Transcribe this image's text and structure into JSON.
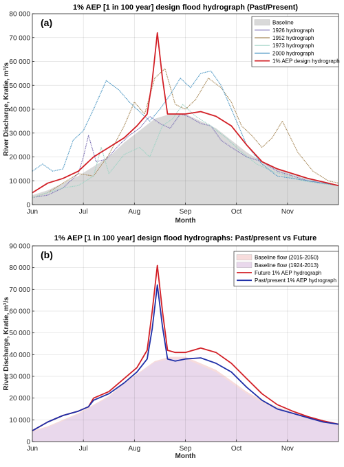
{
  "chart_data": [
    {
      "type": "area",
      "panel_label": "(a)",
      "title": "1% AEP [1 in 100 year] design flood hydrograph (Past/Present)",
      "xlabel": "Month",
      "ylabel": "River Discharge, Kratie, m³/s",
      "ylim": [
        0,
        80000
      ],
      "y_ticks": [
        0,
        10000,
        20000,
        30000,
        40000,
        50000,
        60000,
        70000,
        80000
      ],
      "y_tick_labels": [
        "0",
        "10 000",
        "20 000",
        "30 000",
        "40 000",
        "50 000",
        "60 000",
        "70 000",
        "80 000"
      ],
      "x_ticks": [
        "Jun",
        "Jul",
        "Aug",
        "Sep",
        "Oct",
        "Nov"
      ],
      "xlim_months": [
        0,
        6
      ],
      "grid": true,
      "legend_position": "top-right",
      "series": [
        {
          "name": "Baseline",
          "style": "area",
          "color": "#d9d9d9",
          "x": [
            0,
            0.3,
            0.6,
            0.9,
            1.2,
            1.5,
            1.8,
            2.1,
            2.4,
            2.7,
            3.0,
            3.3,
            3.6,
            3.9,
            4.2,
            4.5,
            4.8,
            5.1,
            5.4,
            5.7,
            6.0
          ],
          "y": [
            4000,
            6000,
            9000,
            12000,
            16000,
            20000,
            26000,
            31000,
            36000,
            38000,
            38000,
            35000,
            32000,
            27000,
            22000,
            18000,
            15000,
            13000,
            11000,
            9000,
            8000
          ]
        },
        {
          "name": "1926 hydrograph",
          "style": "line",
          "color": "#7e72b5",
          "x": [
            0,
            0.3,
            0.6,
            0.9,
            1.0,
            1.1,
            1.25,
            1.45,
            1.7,
            1.9,
            2.1,
            2.3,
            2.5,
            2.7,
            2.9,
            3.05,
            3.3,
            3.5,
            3.7,
            3.9,
            4.2,
            4.5,
            4.8,
            5.1,
            5.4,
            5.7,
            6.0
          ],
          "y": [
            3000,
            4000,
            7000,
            13000,
            20000,
            29000,
            18000,
            19000,
            25000,
            29000,
            32000,
            37000,
            34000,
            32000,
            38000,
            37000,
            34000,
            33000,
            27000,
            24000,
            20000,
            18000,
            14000,
            12000,
            10000,
            9000,
            8000
          ]
        },
        {
          "name": "1952 hydrograph",
          "style": "line",
          "color": "#a88a5a",
          "x": [
            0,
            0.3,
            0.6,
            0.9,
            1.2,
            1.5,
            1.8,
            2.0,
            2.2,
            2.4,
            2.6,
            2.8,
            3.0,
            3.2,
            3.45,
            3.7,
            3.9,
            4.1,
            4.3,
            4.5,
            4.7,
            4.9,
            5.2,
            5.5,
            5.8,
            6.0
          ],
          "y": [
            3000,
            5000,
            9000,
            13000,
            12000,
            21000,
            33000,
            43000,
            38000,
            53000,
            57000,
            42000,
            40000,
            44000,
            53000,
            49000,
            43000,
            33000,
            29000,
            24000,
            28000,
            35000,
            22000,
            14000,
            10000,
            9000
          ]
        },
        {
          "name": "1973 hydrograph",
          "style": "line",
          "color": "#9fd3c5",
          "x": [
            0,
            0.3,
            0.6,
            0.9,
            1.2,
            1.35,
            1.5,
            1.8,
            2.1,
            2.3,
            2.55,
            2.75,
            2.95,
            3.2,
            3.5,
            3.8,
            4.1,
            4.4,
            4.7,
            5.0,
            5.3,
            5.6,
            6.0
          ],
          "y": [
            3000,
            5000,
            7000,
            8000,
            12000,
            24000,
            13000,
            21000,
            24000,
            20000,
            33000,
            36000,
            42000,
            37000,
            33000,
            28000,
            22000,
            17000,
            14000,
            12000,
            10000,
            9000,
            8000
          ]
        },
        {
          "name": "2000 hydrograph",
          "style": "line",
          "color": "#4e98c4",
          "x": [
            0,
            0.2,
            0.4,
            0.6,
            0.8,
            1.0,
            1.2,
            1.45,
            1.7,
            1.9,
            2.1,
            2.3,
            2.5,
            2.7,
            2.9,
            3.1,
            3.3,
            3.5,
            3.7,
            3.9,
            4.2,
            4.5,
            4.8,
            5.1,
            5.4,
            5.7,
            6.0
          ],
          "y": [
            14000,
            17000,
            14000,
            15000,
            27000,
            31000,
            40000,
            52000,
            48000,
            43000,
            39000,
            35000,
            40000,
            46000,
            53000,
            49000,
            55000,
            56000,
            50000,
            40000,
            25000,
            17000,
            12000,
            11000,
            10000,
            9000,
            8000
          ]
        },
        {
          "name": "1% AEP design hydrograph",
          "style": "line",
          "color": "#d21f26",
          "x": [
            0,
            0.3,
            0.6,
            0.9,
            1.2,
            1.5,
            1.8,
            2.05,
            2.25,
            2.35,
            2.45,
            2.55,
            2.65,
            2.75,
            3.0,
            3.3,
            3.6,
            3.9,
            4.2,
            4.5,
            4.8,
            5.1,
            5.4,
            5.7,
            6.0
          ],
          "y": [
            5000,
            9000,
            11000,
            14000,
            20000,
            24000,
            28000,
            33000,
            38000,
            52000,
            72000,
            53000,
            38000,
            38000,
            38000,
            39000,
            37000,
            33000,
            25000,
            18000,
            15000,
            13000,
            11000,
            9500,
            8000
          ]
        }
      ]
    },
    {
      "type": "area",
      "panel_label": "(b)",
      "title": "1% AEP [1 in 100 year] design flood hydrographs: Past/present vs Future",
      "xlabel": "Month",
      "ylabel": "River Discharge, Kratie, m³/s",
      "ylim": [
        0,
        90000
      ],
      "y_ticks": [
        0,
        10000,
        20000,
        30000,
        40000,
        50000,
        60000,
        70000,
        80000,
        90000
      ],
      "y_tick_labels": [
        "0",
        "10 000",
        "20 000",
        "30 000",
        "40 000",
        "50 000",
        "60 000",
        "70 000",
        "80 000",
        "90 000"
      ],
      "x_ticks": [
        "Jun",
        "Jul",
        "Aug",
        "Sep",
        "Oct",
        "Nov"
      ],
      "xlim_months": [
        0,
        6
      ],
      "grid": true,
      "legend_position": "top-right",
      "series": [
        {
          "name": "Baseline flow (2015-2050)",
          "style": "area",
          "color": "#f7dcdc",
          "x": [
            0,
            0.3,
            0.6,
            0.9,
            1.2,
            1.5,
            1.8,
            2.1,
            2.4,
            2.7,
            3.0,
            3.3,
            3.6,
            3.9,
            4.2,
            4.5,
            4.8,
            5.1,
            5.4,
            5.7,
            6.0
          ],
          "y": [
            5000,
            7000,
            10000,
            13000,
            17000,
            21000,
            27000,
            32000,
            37000,
            39000,
            39000,
            36000,
            33000,
            28000,
            23000,
            19000,
            16000,
            13500,
            11500,
            9500,
            8500
          ]
        },
        {
          "name": "Baseline flow (1924-2013)",
          "style": "area",
          "color": "#e9d8ec",
          "x": [
            0,
            0.3,
            0.6,
            0.9,
            1.2,
            1.5,
            1.8,
            2.1,
            2.4,
            2.7,
            3.0,
            3.3,
            3.6,
            3.9,
            4.2,
            4.5,
            4.8,
            5.1,
            5.4,
            5.7,
            6.0
          ],
          "y": [
            4500,
            6500,
            9500,
            12500,
            16500,
            20500,
            26500,
            31500,
            36500,
            38000,
            38000,
            35000,
            32000,
            27000,
            22000,
            18000,
            15000,
            13000,
            11000,
            9000,
            8000
          ]
        },
        {
          "name": "Future 1% AEP hydrograph",
          "style": "line",
          "color": "#d21f26",
          "x": [
            0,
            0.3,
            0.6,
            0.9,
            1.1,
            1.2,
            1.5,
            1.8,
            2.05,
            2.25,
            2.35,
            2.45,
            2.55,
            2.65,
            2.8,
            3.0,
            3.3,
            3.6,
            3.9,
            4.2,
            4.5,
            4.8,
            5.1,
            5.4,
            5.7,
            6.0
          ],
          "y": [
            5000,
            9000,
            12000,
            14000,
            16000,
            20000,
            23000,
            29000,
            34000,
            42000,
            60000,
            81000,
            60000,
            42000,
            41000,
            41000,
            43000,
            41000,
            36000,
            29000,
            22000,
            17000,
            14000,
            11500,
            9500,
            8000
          ]
        },
        {
          "name": "Past/present 1% AEP hydrograph",
          "style": "line",
          "color": "#1f2fa8",
          "x": [
            0,
            0.3,
            0.6,
            0.9,
            1.1,
            1.2,
            1.5,
            1.8,
            2.05,
            2.25,
            2.35,
            2.45,
            2.55,
            2.65,
            2.8,
            3.0,
            3.3,
            3.6,
            3.9,
            4.2,
            4.5,
            4.8,
            5.1,
            5.4,
            5.7,
            6.0
          ],
          "y": [
            5000,
            9000,
            12000,
            14000,
            16000,
            19000,
            22000,
            27000,
            32000,
            38000,
            52000,
            72000,
            53000,
            38000,
            37000,
            38000,
            38500,
            36000,
            32000,
            25000,
            19000,
            15000,
            13000,
            11000,
            9000,
            8000
          ]
        }
      ]
    }
  ]
}
